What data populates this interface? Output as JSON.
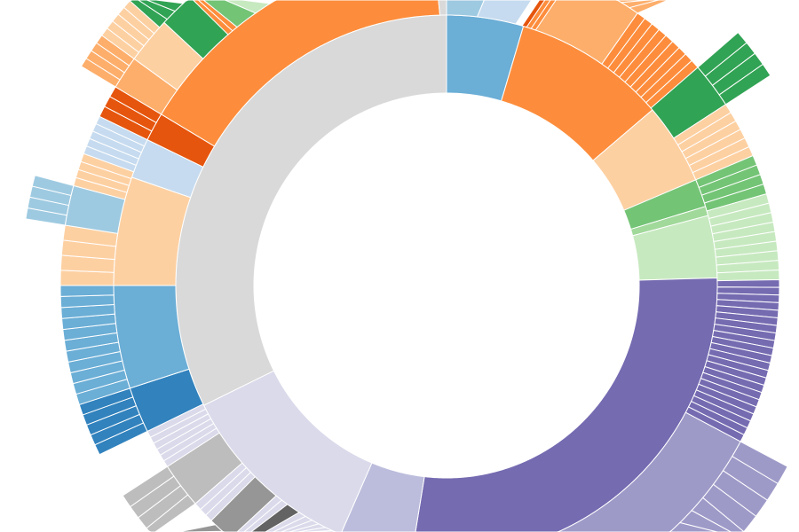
{
  "chart_data": {
    "type": "sunburst",
    "total": 360,
    "rings": [
      [
        {
          "value": 16.5,
          "color": "#6baed6"
        },
        {
          "value": 33,
          "color": "#fd8d3c"
        },
        {
          "value": 17.5,
          "color": "#fdd0a2"
        },
        {
          "value": 6,
          "color": "#74c476"
        },
        {
          "value": 2,
          "color": "#a1d99b"
        },
        {
          "value": 13.4,
          "color": "#c7e9c0"
        },
        {
          "value": 98.2,
          "color": "#756bb1"
        },
        {
          "value": 16.2,
          "color": "#bcbddc"
        },
        {
          "value": 40.9,
          "color": "#dadaeb"
        },
        {
          "value": 116.3,
          "color": "#d9d9d9"
        }
      ],
      [
        {
          "value": 6.5,
          "color": "#9ecae1"
        },
        {
          "value": 8.3,
          "color": "#c6dbef"
        },
        {
          "value": 1.4,
          "color": null
        },
        {
          "value": 1,
          "color": "#e6550d"
        },
        {
          "value": 2,
          "color": "#fd8d3c",
          "leaves": 2
        },
        {
          "value": 15.8,
          "color": "#fdae6b"
        },
        {
          "value": 14,
          "color": "#fd8d3c",
          "leaves": 9
        },
        {
          "value": 8,
          "color": "#31a354"
        },
        {
          "value": 10,
          "color": "#fdd0a2",
          "leaves": 6
        },
        {
          "value": 7,
          "color": "#74c476",
          "leaves": 4
        },
        {
          "value": 15,
          "color": "#c7e9c0",
          "leaves": 9
        },
        {
          "value": 29,
          "color": "#756bb1",
          "leaves": 22
        },
        {
          "value": 45,
          "color": "#9e9ac8"
        },
        {
          "value": 24,
          "color": null
        },
        {
          "value": 18,
          "color": "#dadaeb",
          "leaves": 10
        },
        {
          "value": 8,
          "color": "#dadaeb",
          "leaves": 5
        },
        {
          "value": 3,
          "color": "#636363"
        },
        {
          "value": 3,
          "color": "#dadaeb",
          "leaves": 2
        },
        {
          "value": 6,
          "color": "#969696"
        },
        {
          "value": 4,
          "color": "#dadaeb",
          "leaves": 3
        },
        {
          "value": 8,
          "color": "#bdbdbd"
        },
        {
          "value": 7,
          "color": "#dadaeb",
          "leaves": 6
        },
        {
          "value": 8,
          "color": "#3182bd"
        },
        {
          "value": 18,
          "color": "#6baed6"
        },
        {
          "value": 19,
          "color": "#fdd0a2"
        },
        {
          "value": 7,
          "color": "#c6dbef"
        },
        {
          "value": 5,
          "color": "#e6550d"
        },
        {
          "value": 57.6,
          "color": "#fd8d3c"
        },
        {
          "value": 1.4,
          "color": "#d9d9d9"
        }
      ],
      [
        {
          "value": 30,
          "color": null
        },
        {
          "value": 5,
          "color": "#fdae6b",
          "leaves": 3
        },
        {
          "value": 14,
          "color": null
        },
        {
          "value": 8,
          "color": "#31a354",
          "leaves": 4
        },
        {
          "value": 61,
          "color": null
        },
        {
          "value": 35,
          "color": "#9e9ac8",
          "leaves": 12
        },
        {
          "value": 66,
          "color": null
        },
        {
          "value": 5,
          "color": "#969696",
          "leaves": 3
        },
        {
          "value": 5,
          "color": null
        },
        {
          "value": 8,
          "color": "#bdbdbd",
          "leaves": 4
        },
        {
          "value": 7,
          "color": null
        },
        {
          "value": 8,
          "color": "#3182bd",
          "leaves": 5
        },
        {
          "value": 18,
          "color": "#6baed6",
          "leaves": 11
        },
        {
          "value": 9,
          "color": "#fdd0a2",
          "leaves": 4
        },
        {
          "value": 6,
          "color": "#9ecae1"
        },
        {
          "value": 5,
          "color": "#fdd0a2",
          "leaves": 4
        },
        {
          "value": 6,
          "color": "#c6dbef",
          "leaves": 5
        },
        {
          "value": 5,
          "color": "#e6550d",
          "leaves": 3
        },
        {
          "value": 5,
          "color": "#fdae6b"
        },
        {
          "value": 7,
          "color": "#fdd0a2"
        },
        {
          "value": 6,
          "color": "#31a354"
        },
        {
          "value": 2,
          "color": "#fd8d3c",
          "leaves": 2
        },
        {
          "value": 4,
          "color": "#74c476"
        },
        {
          "value": 3,
          "color": "#c7e9c0"
        }
      ],
      [
        {
          "value": 279,
          "color": null
        },
        {
          "value": 6,
          "color": "#9ecae1",
          "leaves": 4
        },
        {
          "value": 16,
          "color": null
        },
        {
          "value": 5,
          "color": "#fdae6b",
          "leaves": 4
        },
        {
          "value": 6,
          "color": "#fdd0a2",
          "leaves": 5
        },
        {
          "value": 5,
          "color": "#31a354",
          "leaves": 3
        }
      ]
    ]
  }
}
